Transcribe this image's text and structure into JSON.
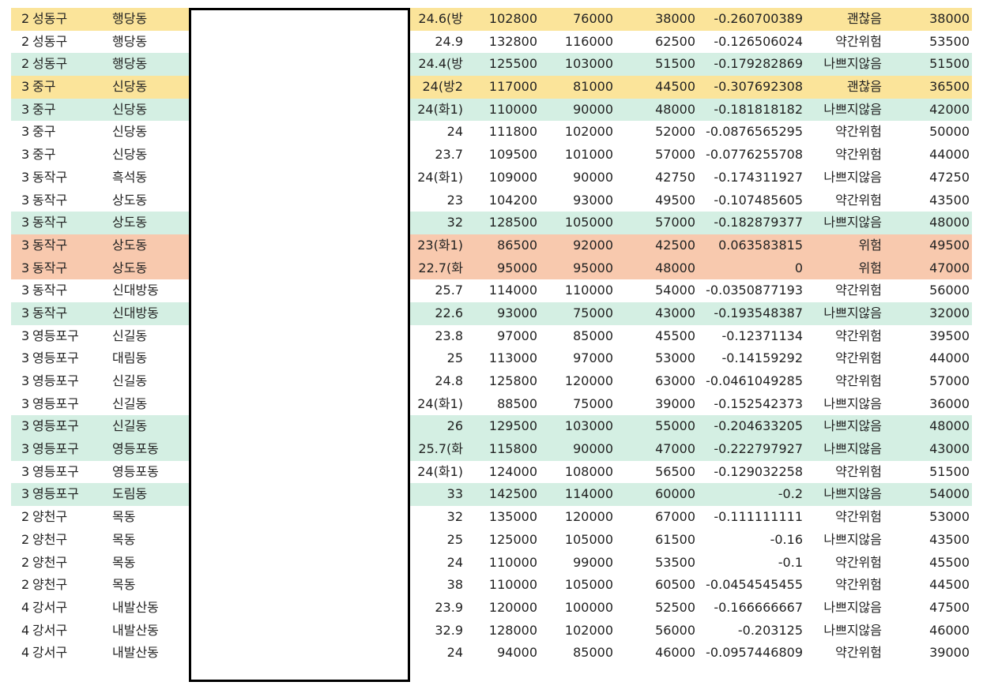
{
  "sheet": {
    "rows": [
      {
        "rank": "2",
        "gu": "성동구",
        "dong": "행당동",
        "area": "24.6(방",
        "v1": "102800",
        "v2": "76000",
        "v3": "38000",
        "ratio": "-0.260700389",
        "risk": "괜찮음",
        "v4": "38000",
        "color": "yellow"
      },
      {
        "rank": "2",
        "gu": "성동구",
        "dong": "행당동",
        "area": "24.9",
        "v1": "132800",
        "v2": "116000",
        "v3": "62500",
        "ratio": "-0.126506024",
        "risk": "약간위험",
        "v4": "53500",
        "color": "none"
      },
      {
        "rank": "2",
        "gu": "성동구",
        "dong": "행당동",
        "area": "24.4(방",
        "v1": "125500",
        "v2": "103000",
        "v3": "51500",
        "ratio": "-0.179282869",
        "risk": "나쁘지않음",
        "v4": "51500",
        "color": "green"
      },
      {
        "rank": "3",
        "gu": "중구",
        "dong": "신당동",
        "area": "24(방2",
        "v1": "117000",
        "v2": "81000",
        "v3": "44500",
        "ratio": "-0.307692308",
        "risk": "괜찮음",
        "v4": "36500",
        "color": "yellow"
      },
      {
        "rank": "3",
        "gu": "중구",
        "dong": "신당동",
        "area": "24(화1)",
        "v1": "110000",
        "v2": "90000",
        "v3": "48000",
        "ratio": "-0.181818182",
        "risk": "나쁘지않음",
        "v4": "42000",
        "color": "green"
      },
      {
        "rank": "3",
        "gu": "중구",
        "dong": "신당동",
        "area": "24",
        "v1": "111800",
        "v2": "102000",
        "v3": "52000",
        "ratio": "-0.0876565295",
        "risk": "약간위험",
        "v4": "50000",
        "color": "none"
      },
      {
        "rank": "3",
        "gu": "중구",
        "dong": "신당동",
        "area": "23.7",
        "v1": "109500",
        "v2": "101000",
        "v3": "57000",
        "ratio": "-0.0776255708",
        "risk": "약간위험",
        "v4": "44000",
        "color": "none"
      },
      {
        "rank": "3",
        "gu": "동작구",
        "dong": "흑석동",
        "area": "24(화1)",
        "v1": "109000",
        "v2": "90000",
        "v3": "42750",
        "ratio": "-0.174311927",
        "risk": "나쁘지않음",
        "v4": "47250",
        "color": "none"
      },
      {
        "rank": "3",
        "gu": "동작구",
        "dong": "상도동",
        "area": "23",
        "v1": "104200",
        "v2": "93000",
        "v3": "49500",
        "ratio": "-0.107485605",
        "risk": "약간위험",
        "v4": "43500",
        "color": "none"
      },
      {
        "rank": "3",
        "gu": "동작구",
        "dong": "상도동",
        "area": "32",
        "v1": "128500",
        "v2": "105000",
        "v3": "57000",
        "ratio": "-0.182879377",
        "risk": "나쁘지않음",
        "v4": "48000",
        "color": "green"
      },
      {
        "rank": "3",
        "gu": "동작구",
        "dong": "상도동",
        "area": "23(화1)",
        "v1": "86500",
        "v2": "92000",
        "v3": "42500",
        "ratio": "0.063583815",
        "risk": "위험",
        "v4": "49500",
        "color": "orange"
      },
      {
        "rank": "3",
        "gu": "동작구",
        "dong": "상도동",
        "area": "22.7(화",
        "v1": "95000",
        "v2": "95000",
        "v3": "48000",
        "ratio": "0",
        "risk": "위험",
        "v4": "47000",
        "color": "orange"
      },
      {
        "rank": "3",
        "gu": "동작구",
        "dong": "신대방동",
        "area": "25.7",
        "v1": "114000",
        "v2": "110000",
        "v3": "54000",
        "ratio": "-0.0350877193",
        "risk": "약간위험",
        "v4": "56000",
        "color": "none"
      },
      {
        "rank": "3",
        "gu": "동작구",
        "dong": "신대방동",
        "area": "22.6",
        "v1": "93000",
        "v2": "75000",
        "v3": "43000",
        "ratio": "-0.193548387",
        "risk": "나쁘지않음",
        "v4": "32000",
        "color": "green"
      },
      {
        "rank": "3",
        "gu": "영등포구",
        "dong": "신길동",
        "area": "23.8",
        "v1": "97000",
        "v2": "85000",
        "v3": "45500",
        "ratio": "-0.12371134",
        "risk": "약간위험",
        "v4": "39500",
        "color": "none"
      },
      {
        "rank": "3",
        "gu": "영등포구",
        "dong": "대림동",
        "area": "25",
        "v1": "113000",
        "v2": "97000",
        "v3": "53000",
        "ratio": "-0.14159292",
        "risk": "약간위험",
        "v4": "44000",
        "color": "none"
      },
      {
        "rank": "3",
        "gu": "영등포구",
        "dong": "신길동",
        "area": "24.8",
        "v1": "125800",
        "v2": "120000",
        "v3": "63000",
        "ratio": "-0.0461049285",
        "risk": "약간위험",
        "v4": "57000",
        "color": "none"
      },
      {
        "rank": "3",
        "gu": "영등포구",
        "dong": "신길동",
        "area": "24(화1)",
        "v1": "88500",
        "v2": "75000",
        "v3": "39000",
        "ratio": "-0.152542373",
        "risk": "나쁘지않음",
        "v4": "36000",
        "color": "none"
      },
      {
        "rank": "3",
        "gu": "영등포구",
        "dong": "신길동",
        "area": "26",
        "v1": "129500",
        "v2": "103000",
        "v3": "55000",
        "ratio": "-0.204633205",
        "risk": "나쁘지않음",
        "v4": "48000",
        "color": "green"
      },
      {
        "rank": "3",
        "gu": "영등포구",
        "dong": "영등포동",
        "area": "25.7(화",
        "v1": "115800",
        "v2": "90000",
        "v3": "47000",
        "ratio": "-0.222797927",
        "risk": "나쁘지않음",
        "v4": "43000",
        "color": "green"
      },
      {
        "rank": "3",
        "gu": "영등포구",
        "dong": "영등포동",
        "area": "24(화1)",
        "v1": "124000",
        "v2": "108000",
        "v3": "56500",
        "ratio": "-0.129032258",
        "risk": "약간위험",
        "v4": "51500",
        "color": "none"
      },
      {
        "rank": "3",
        "gu": "영등포구",
        "dong": "도림동",
        "area": "33",
        "v1": "142500",
        "v2": "114000",
        "v3": "60000",
        "ratio": "-0.2",
        "risk": "나쁘지않음",
        "v4": "54000",
        "color": "green"
      },
      {
        "rank": "2",
        "gu": "양천구",
        "dong": "목동",
        "area": "32",
        "v1": "135000",
        "v2": "120000",
        "v3": "67000",
        "ratio": "-0.111111111",
        "risk": "약간위험",
        "v4": "53000",
        "color": "none"
      },
      {
        "rank": "2",
        "gu": "양천구",
        "dong": "목동",
        "area": "25",
        "v1": "125000",
        "v2": "105000",
        "v3": "61500",
        "ratio": "-0.16",
        "risk": "나쁘지않음",
        "v4": "43500",
        "color": "none"
      },
      {
        "rank": "2",
        "gu": "양천구",
        "dong": "목동",
        "area": "24",
        "v1": "110000",
        "v2": "99000",
        "v3": "53500",
        "ratio": "-0.1",
        "risk": "약간위험",
        "v4": "45500",
        "color": "none"
      },
      {
        "rank": "2",
        "gu": "양천구",
        "dong": "목동",
        "area": "38",
        "v1": "110000",
        "v2": "105000",
        "v3": "60500",
        "ratio": "-0.0454545455",
        "risk": "약간위험",
        "v4": "44500",
        "color": "none"
      },
      {
        "rank": "4",
        "gu": "강서구",
        "dong": "내발산동",
        "area": "23.9",
        "v1": "120000",
        "v2": "100000",
        "v3": "52500",
        "ratio": "-0.166666667",
        "risk": "나쁘지않음",
        "v4": "47500",
        "color": "none"
      },
      {
        "rank": "4",
        "gu": "강서구",
        "dong": "내발산동",
        "area": "32.9",
        "v1": "128000",
        "v2": "102000",
        "v3": "56000",
        "ratio": "-0.203125",
        "risk": "나쁘지않음",
        "v4": "46000",
        "color": "none"
      },
      {
        "rank": "4",
        "gu": "강서구",
        "dong": "내발산동",
        "area": "24",
        "v1": "94000",
        "v2": "85000",
        "v3": "46000",
        "ratio": "-0.0957446809",
        "risk": "약간위험",
        "v4": "39000",
        "color": "none"
      }
    ]
  },
  "colors": {
    "yellow": "#fbe49a",
    "green": "#d4efe3",
    "orange": "#f8c9ae",
    "redaction_border": "#000000"
  }
}
